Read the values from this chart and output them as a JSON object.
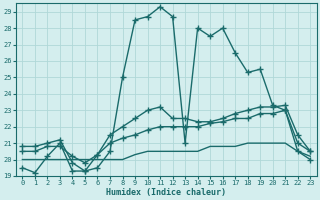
{
  "xlabel": "Humidex (Indice chaleur)",
  "xlim": [
    -0.5,
    23.5
  ],
  "ylim": [
    19,
    29.5
  ],
  "yticks": [
    19,
    20,
    21,
    22,
    23,
    24,
    25,
    26,
    27,
    28,
    29
  ],
  "xticks": [
    0,
    1,
    2,
    3,
    4,
    5,
    6,
    7,
    8,
    9,
    10,
    11,
    12,
    13,
    14,
    15,
    16,
    17,
    18,
    19,
    20,
    21,
    22,
    23
  ],
  "bg_color": "#d4eeee",
  "grid_color": "#b0d8d8",
  "line_color": "#1a6b6b",
  "line_width": 1.0,
  "marker": "+",
  "marker_size": 4,
  "series1": [
    19.5,
    19.2,
    20.2,
    21.0,
    19.3,
    19.3,
    19.5,
    20.5,
    25.0,
    28.5,
    28.7,
    29.3,
    28.7,
    21.0,
    28.0,
    27.5,
    28.0,
    26.5,
    25.3,
    25.5,
    23.3,
    23.0,
    20.5,
    20.0
  ],
  "series2": [
    20.8,
    20.8,
    21.0,
    21.2,
    19.8,
    19.3,
    20.3,
    21.5,
    22.0,
    22.5,
    23.0,
    23.2,
    22.5,
    22.5,
    22.3,
    22.3,
    22.5,
    22.8,
    23.0,
    23.2,
    23.2,
    23.3,
    21.5,
    20.5
  ],
  "series3": [
    20.5,
    20.5,
    20.8,
    20.8,
    20.2,
    19.8,
    20.3,
    21.0,
    21.3,
    21.5,
    21.8,
    22.0,
    22.0,
    22.0,
    22.0,
    22.2,
    22.3,
    22.5,
    22.5,
    22.8,
    22.8,
    23.0,
    21.0,
    20.5
  ],
  "series4": [
    20.0,
    20.0,
    20.0,
    20.0,
    20.0,
    20.0,
    20.0,
    20.0,
    20.0,
    20.3,
    20.5,
    20.5,
    20.5,
    20.5,
    20.5,
    20.8,
    20.8,
    20.8,
    21.0,
    21.0,
    21.0,
    21.0,
    20.5,
    20.2
  ]
}
